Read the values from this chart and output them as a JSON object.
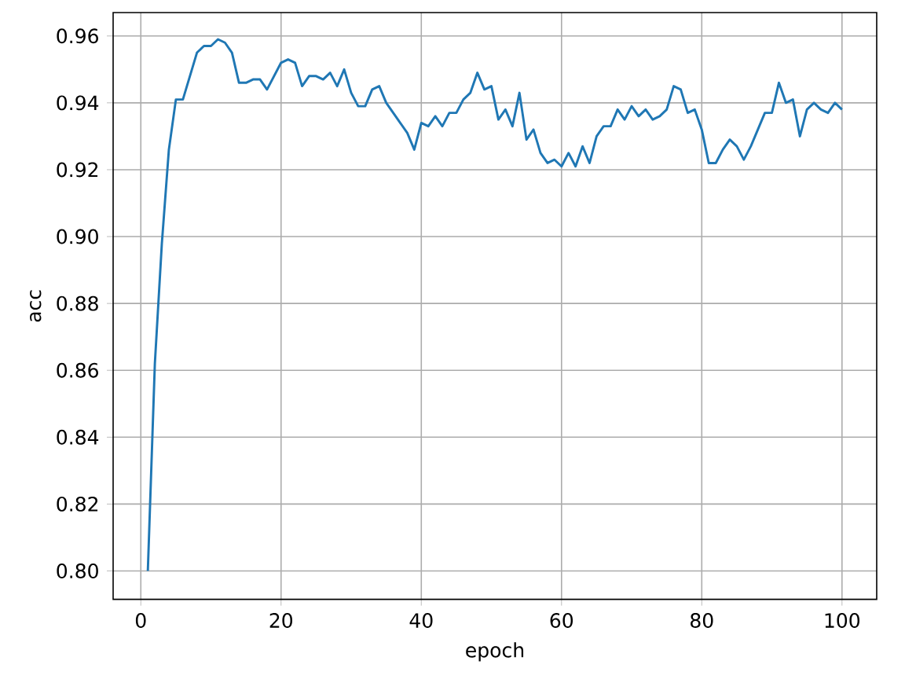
{
  "chart_data": {
    "type": "line",
    "xlabel": "epoch",
    "ylabel": "acc",
    "x": [
      1,
      2,
      3,
      4,
      5,
      6,
      7,
      8,
      9,
      10,
      11,
      12,
      13,
      14,
      15,
      16,
      17,
      18,
      19,
      20,
      21,
      22,
      23,
      24,
      25,
      26,
      27,
      28,
      29,
      30,
      31,
      32,
      33,
      34,
      35,
      36,
      37,
      38,
      39,
      40,
      41,
      42,
      43,
      44,
      45,
      46,
      47,
      48,
      49,
      50,
      51,
      52,
      53,
      54,
      55,
      56,
      57,
      58,
      59,
      60,
      61,
      62,
      63,
      64,
      65,
      66,
      67,
      68,
      69,
      70,
      71,
      72,
      73,
      74,
      75,
      76,
      77,
      78,
      79,
      80,
      81,
      82,
      83,
      84,
      85,
      86,
      87,
      88,
      89,
      90,
      91,
      92,
      93,
      94,
      95,
      96,
      97,
      98,
      99,
      100
    ],
    "series": [
      {
        "color": "#1f77b4",
        "values": [
          0.8,
          0.862,
          0.898,
          0.926,
          0.941,
          0.941,
          0.948,
          0.955,
          0.957,
          0.957,
          0.959,
          0.958,
          0.955,
          0.946,
          0.946,
          0.947,
          0.947,
          0.944,
          0.948,
          0.952,
          0.953,
          0.952,
          0.945,
          0.948,
          0.948,
          0.947,
          0.949,
          0.945,
          0.95,
          0.943,
          0.939,
          0.939,
          0.944,
          0.945,
          0.94,
          0.937,
          0.934,
          0.931,
          0.926,
          0.934,
          0.933,
          0.936,
          0.933,
          0.937,
          0.937,
          0.941,
          0.943,
          0.949,
          0.944,
          0.945,
          0.935,
          0.938,
          0.933,
          0.943,
          0.929,
          0.932,
          0.925,
          0.922,
          0.923,
          0.921,
          0.925,
          0.921,
          0.927,
          0.922,
          0.93,
          0.933,
          0.933,
          0.938,
          0.935,
          0.939,
          0.936,
          0.938,
          0.935,
          0.936,
          0.938,
          0.945,
          0.944,
          0.937,
          0.938,
          0.932,
          0.922,
          0.922,
          0.926,
          0.929,
          0.927,
          0.923,
          0.927,
          0.932,
          0.937,
          0.937,
          0.946,
          0.94,
          0.941,
          0.93,
          0.938,
          0.94,
          0.938,
          0.937,
          0.94,
          0.938
        ]
      }
    ],
    "xlim": [
      -3.95,
      104.95
    ],
    "ylim": [
      0.7915,
      0.967
    ],
    "xticks": [
      0,
      20,
      40,
      60,
      80,
      100
    ],
    "yticks": [
      {
        "value": 0.8,
        "label": "0.80"
      },
      {
        "value": 0.82,
        "label": "0.82"
      },
      {
        "value": 0.84,
        "label": "0.84"
      },
      {
        "value": 0.86,
        "label": "0.86"
      },
      {
        "value": 0.88,
        "label": "0.88"
      },
      {
        "value": 0.9,
        "label": "0.90"
      },
      {
        "value": 0.92,
        "label": "0.92"
      },
      {
        "value": 0.94,
        "label": "0.94"
      },
      {
        "value": 0.96,
        "label": "0.96"
      }
    ],
    "grid": true
  }
}
